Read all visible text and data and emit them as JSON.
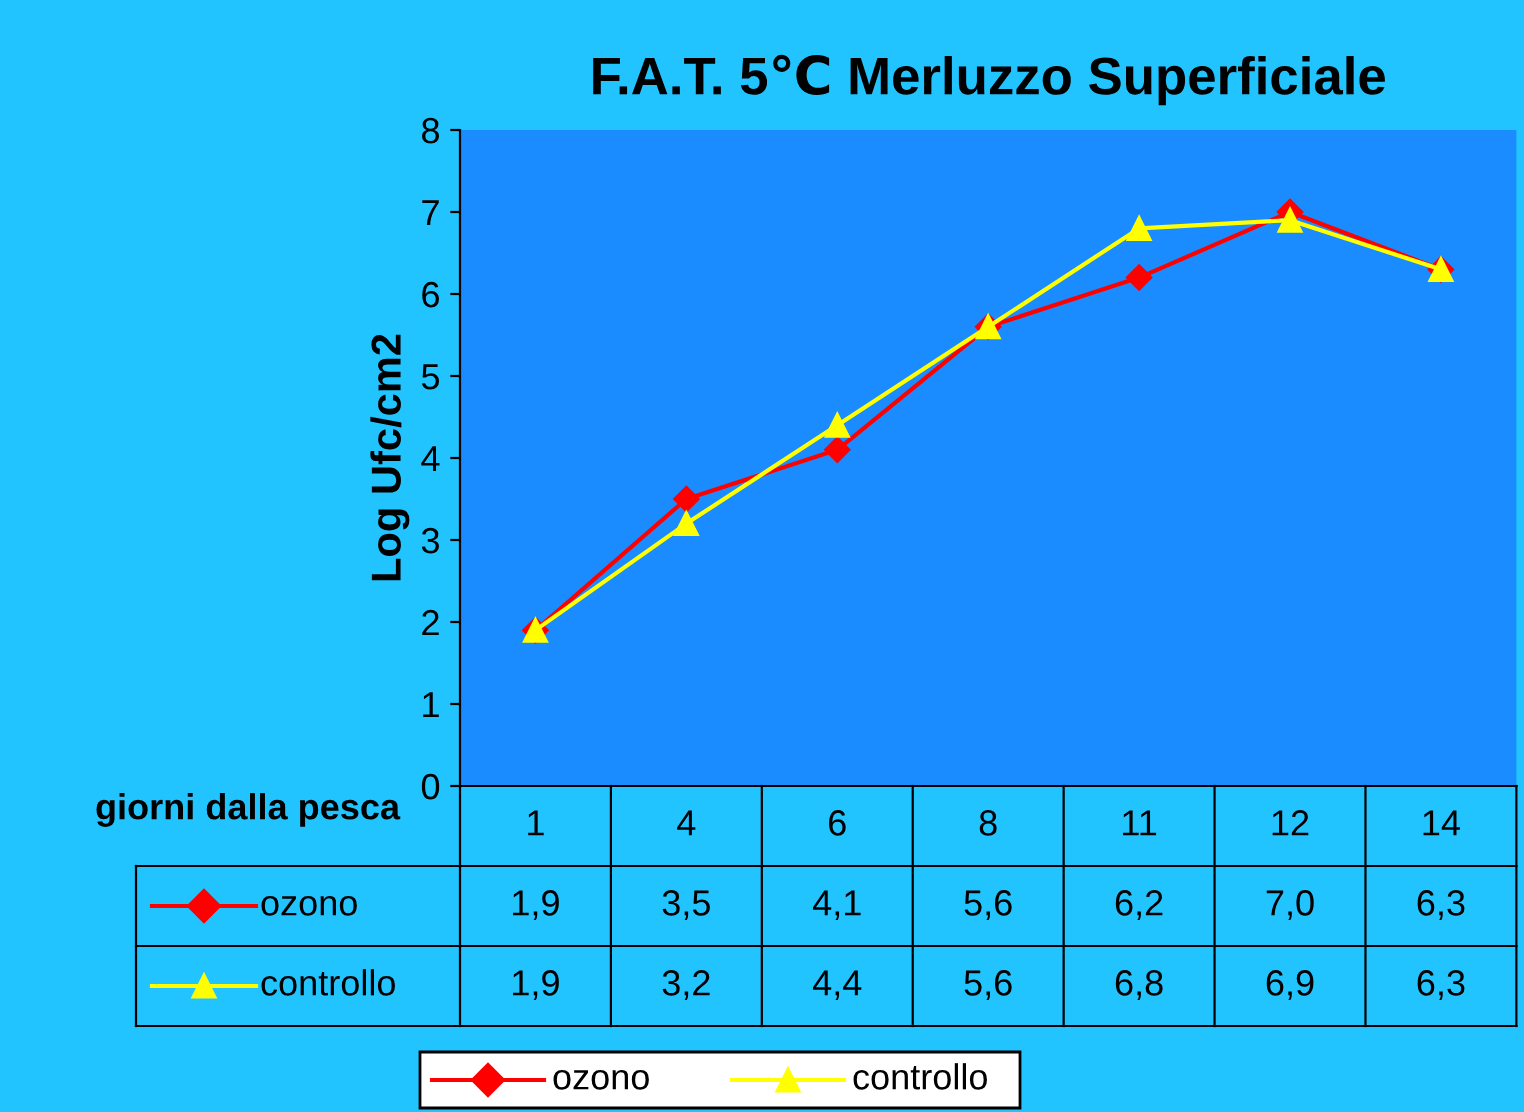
{
  "chart_data": {
    "type": "line",
    "title": "F.A.T. 5℃ Merluzzo Superficiale",
    "xlabel": "giorni dalla pesca",
    "ylabel": "Log Ufc/cm2",
    "categories": [
      "1",
      "4",
      "6",
      "8",
      "11",
      "12",
      "14"
    ],
    "series": [
      {
        "name": "ozono",
        "color": "#ff0000",
        "marker": "diamond",
        "values": [
          1.9,
          3.5,
          4.1,
          5.6,
          6.2,
          7.0,
          6.3
        ],
        "value_labels": [
          "1,9",
          "3,5",
          "4,1",
          "5,6",
          "6,2",
          "7,0",
          "6,3"
        ]
      },
      {
        "name": "controllo",
        "color": "#ffff00",
        "marker": "triangle",
        "values": [
          1.9,
          3.2,
          4.4,
          5.6,
          6.8,
          6.9,
          6.3
        ],
        "value_labels": [
          "1,9",
          "3,2",
          "4,4",
          "5,6",
          "6,8",
          "6,9",
          "6,3"
        ]
      }
    ],
    "ylim": [
      0,
      8
    ],
    "yticks": [
      0,
      1,
      2,
      3,
      4,
      5,
      6,
      7,
      8
    ],
    "grid": false,
    "legend": "bottom"
  }
}
